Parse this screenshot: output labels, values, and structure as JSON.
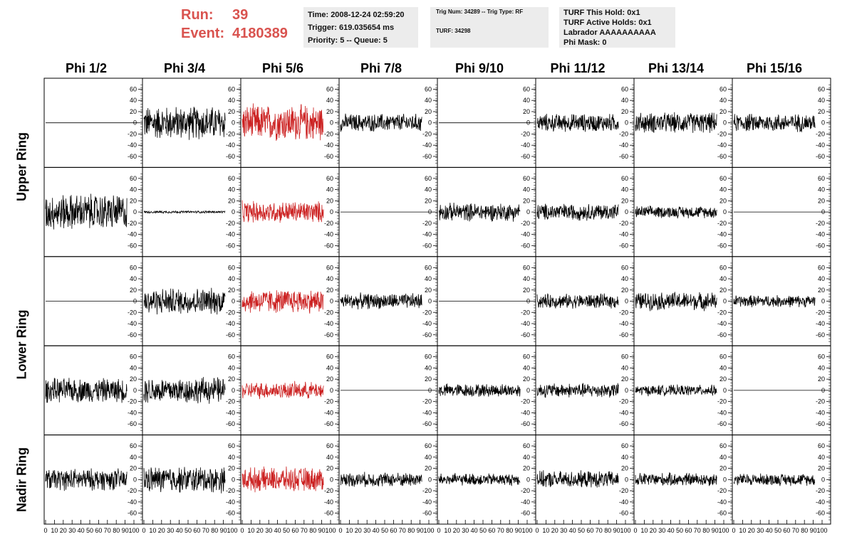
{
  "header": {
    "run_label": "Run:",
    "run_value": "39",
    "event_label": "Event:",
    "event_value": "4180389",
    "time": "Time: 2008-12-24 02:59:20",
    "trigger": "Trigger: 619.035654 ms",
    "priority": "Priority: 5 -- Queue: 5",
    "trig_num": "Trig Num: 34289 -- Trig Type: RF",
    "turf": "TURF: 34298",
    "turf_this_hold": "TURF This Hold: 0x1",
    "turf_active_holds": "TURF Active Holds: 0x1",
    "labrador": "Labrador AAAAAAAAAA",
    "phi_mask": "Phi Mask: 0"
  },
  "columns": [
    "Phi 1/2",
    "Phi 3/4",
    "Phi 5/6",
    "Phi 7/8",
    "Phi 9/10",
    "Phi 11/12",
    "Phi 13/14",
    "Phi 15/16"
  ],
  "rows": [
    "Upper Ring",
    "Lower Ring",
    "Nadir Ring"
  ],
  "colors": {
    "trace": "#000000",
    "highlight": "#cc2222",
    "name_red": "#d9534f"
  },
  "chart_data": {
    "type": "line",
    "x_ticks": [
      0,
      10,
      20,
      30,
      40,
      50,
      60,
      70,
      80,
      90,
      100
    ],
    "xlim": [
      0,
      100
    ],
    "ylim": [
      -72,
      72
    ],
    "y_ticks": [
      -60,
      -40,
      -20,
      0,
      20,
      40,
      60
    ],
    "highlight_column": 2,
    "amplitudes": [
      [
        0,
        28,
        30,
        15,
        0,
        15,
        17,
        15
      ],
      [
        30,
        2,
        18,
        0,
        15,
        14,
        10,
        0
      ],
      [
        0,
        22,
        20,
        13,
        0,
        12,
        15,
        10
      ],
      [
        20,
        22,
        14,
        0,
        11,
        12,
        9,
        0
      ],
      [
        18,
        22,
        20,
        12,
        10,
        14,
        11,
        10
      ]
    ]
  }
}
